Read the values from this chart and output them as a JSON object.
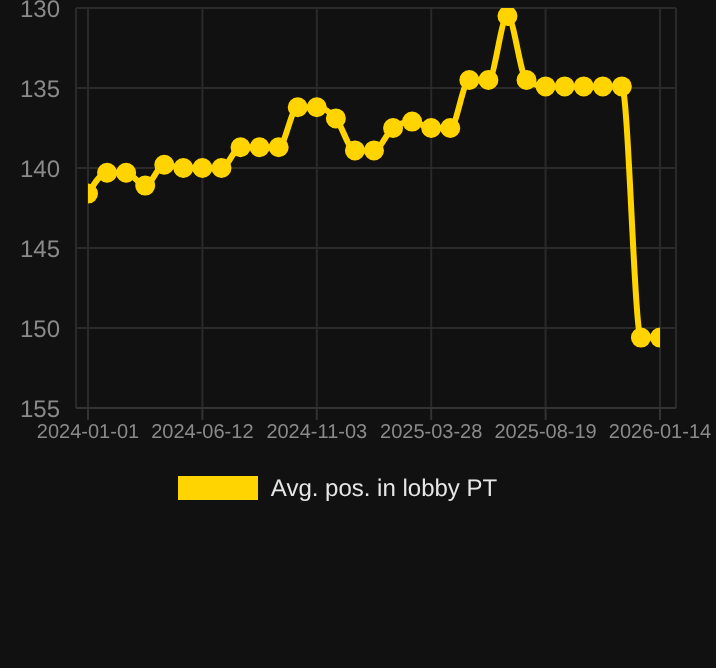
{
  "chart_data": {
    "type": "line",
    "categories": [
      "2024-01-01",
      null,
      null,
      null,
      null,
      null,
      "2024-06-12",
      null,
      null,
      null,
      null,
      null,
      "2024-11-03",
      null,
      null,
      null,
      null,
      null,
      "2025-03-28",
      null,
      null,
      null,
      null,
      null,
      "2025-08-19",
      null,
      null,
      null,
      null,
      null,
      "2026-01-14"
    ],
    "series": [
      {
        "name": "Avg. pos. in lobby PT",
        "color": "#ffd400",
        "values": [
          141.6,
          140.3,
          140.3,
          141.1,
          139.8,
          140,
          140,
          140,
          138.7,
          138.7,
          138.7,
          136.2,
          136.2,
          136.9,
          138.9,
          138.9,
          137.5,
          137.1,
          137.5,
          137.5,
          134.5,
          134.5,
          130.5,
          134.5,
          134.9,
          134.9,
          134.9,
          134.9,
          134.9,
          150.6,
          150.6
        ]
      }
    ],
    "ylim": [
      155,
      130
    ],
    "yticks": [
      130,
      135,
      140,
      145,
      150,
      155
    ],
    "grid": true,
    "legend": "bottom",
    "marker": "circle",
    "line_style": "solid"
  }
}
